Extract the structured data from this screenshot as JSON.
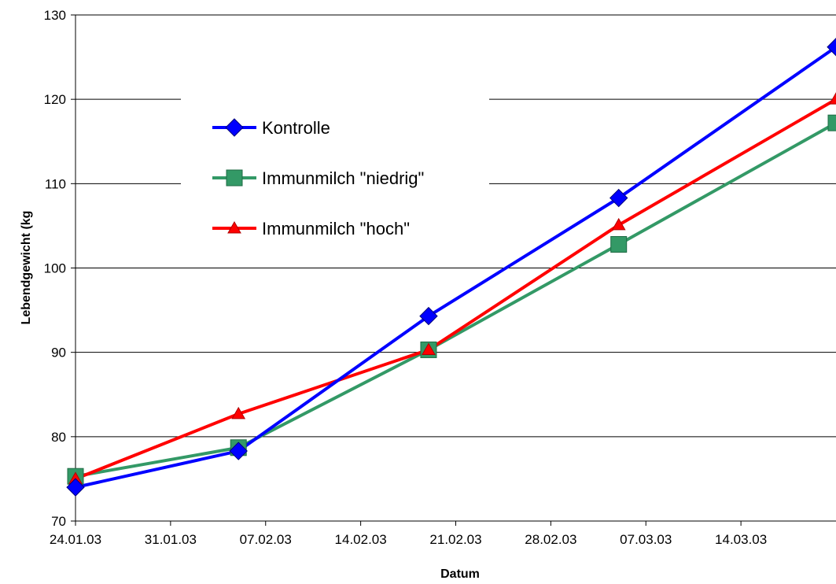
{
  "chart_data": {
    "type": "line",
    "xlabel": "Datum",
    "ylabel": "Lebendgewicht (kg",
    "ylim": [
      70,
      130
    ],
    "yticks": [
      70,
      80,
      90,
      100,
      110,
      120,
      130
    ],
    "xlim": [
      "2003-01-24",
      "2003-03-21"
    ],
    "xtick_dates": [
      "2003-01-24",
      "2003-01-31",
      "2003-02-07",
      "2003-02-14",
      "2003-02-21",
      "2003-02-28",
      "2003-03-07",
      "2003-03-14"
    ],
    "xtick_labels": [
      "24.01.03",
      "31.01.03",
      "07.02.03",
      "14.02.03",
      "21.02.03",
      "28.02.03",
      "07.03.03",
      "14.03.03"
    ],
    "x": [
      "2003-01-24",
      "2003-02-05",
      "2003-02-19",
      "2003-03-05",
      "2003-03-21"
    ],
    "grid": "horizontal",
    "legend_position": "top-left",
    "series": [
      {
        "name": "Kontrolle",
        "color": "#0000ff",
        "marker": "diamond",
        "values": [
          74.0,
          78.3,
          94.3,
          108.3,
          126.2
        ]
      },
      {
        "name": "Immunmilch \"niedrig\"",
        "color": "#339966",
        "marker": "square",
        "values": [
          75.3,
          78.7,
          90.3,
          102.8,
          117.2
        ]
      },
      {
        "name": "Immunmilch \"hoch\"",
        "color": "#ff0000",
        "marker": "triangle",
        "values": [
          75.0,
          82.7,
          90.3,
          105.1,
          120.0
        ]
      }
    ]
  }
}
